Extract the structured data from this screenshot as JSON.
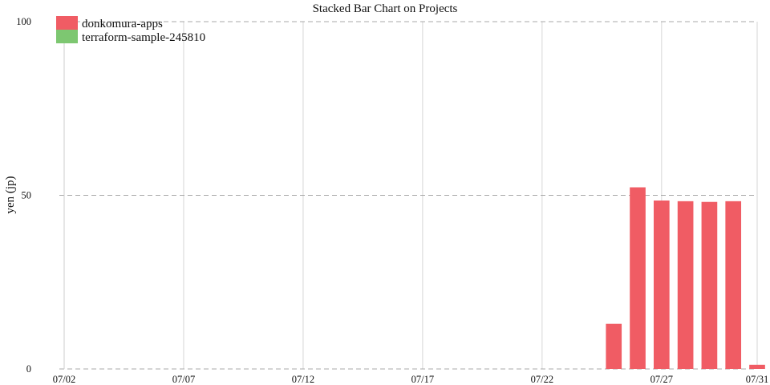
{
  "chart_data": {
    "type": "bar",
    "stacked": true,
    "title": "Stacked Bar Chart on Projects",
    "xlabel": "",
    "ylabel": "yen (jp)",
    "ylim": [
      0,
      100
    ],
    "yticks": [
      0,
      50,
      100
    ],
    "xtick_labels": [
      "07/02",
      "07/07",
      "07/12",
      "07/17",
      "07/22",
      "07/27",
      "07/31"
    ],
    "grid": true,
    "legend_position": "top-left",
    "categories": [
      "07/02",
      "07/03",
      "07/04",
      "07/05",
      "07/06",
      "07/07",
      "07/08",
      "07/09",
      "07/10",
      "07/11",
      "07/12",
      "07/13",
      "07/14",
      "07/15",
      "07/16",
      "07/17",
      "07/18",
      "07/19",
      "07/20",
      "07/21",
      "07/22",
      "07/23",
      "07/24",
      "07/25",
      "07/26",
      "07/27",
      "07/28",
      "07/29",
      "07/30",
      "07/31"
    ],
    "series": [
      {
        "name": "donkomura-apps",
        "color": "#f05c64",
        "values": [
          0,
          0,
          0,
          0,
          0,
          0,
          0,
          0,
          0,
          0,
          0,
          0,
          0,
          0,
          0,
          0,
          0,
          0,
          0,
          0,
          0,
          0,
          0,
          13,
          52.3,
          48.5,
          48.3,
          48.1,
          48.3,
          1.2
        ]
      },
      {
        "name": "terraform-sample-245810",
        "color": "#7dc771",
        "values": [
          0,
          0,
          0,
          0,
          0,
          0,
          0,
          0,
          0,
          0,
          0,
          0,
          0,
          0,
          0,
          0,
          0,
          0,
          0,
          0,
          0,
          0,
          0,
          0,
          0,
          0,
          0,
          0,
          0,
          0
        ]
      }
    ]
  }
}
